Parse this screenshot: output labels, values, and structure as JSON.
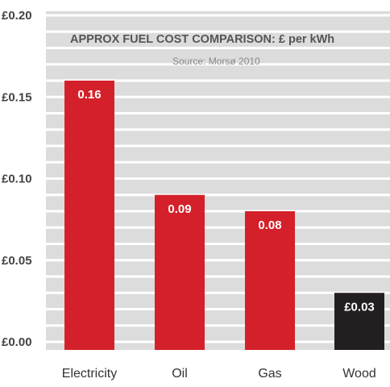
{
  "chart_data": {
    "type": "bar",
    "title": "APPROX FUEL COST COMPARISON: £ per kWh",
    "subtitle": "Source: Morsø 2010",
    "categories": [
      "Electricity",
      "Oil",
      "Gas",
      "Wood"
    ],
    "values": [
      0.16,
      0.09,
      0.08,
      0.03
    ],
    "value_labels": [
      "0.16",
      "0.09",
      "0.08",
      "£0.03"
    ],
    "ylim": [
      0,
      0.2
    ],
    "yticks": [
      0,
      0.05,
      0.1,
      0.15,
      0.2
    ],
    "ytick_labels": [
      "£0.00",
      "£0.05",
      "£0.10",
      "£0.15",
      "£0.20"
    ],
    "xlabel": "",
    "ylabel": "",
    "grid": true,
    "legend": "none",
    "colors": {
      "bar": "#d4202a",
      "highlight_bar": "#231f20",
      "highlight_index": 3,
      "plot_background": "#dcdcdc",
      "gridline": "#ffffff"
    }
  }
}
